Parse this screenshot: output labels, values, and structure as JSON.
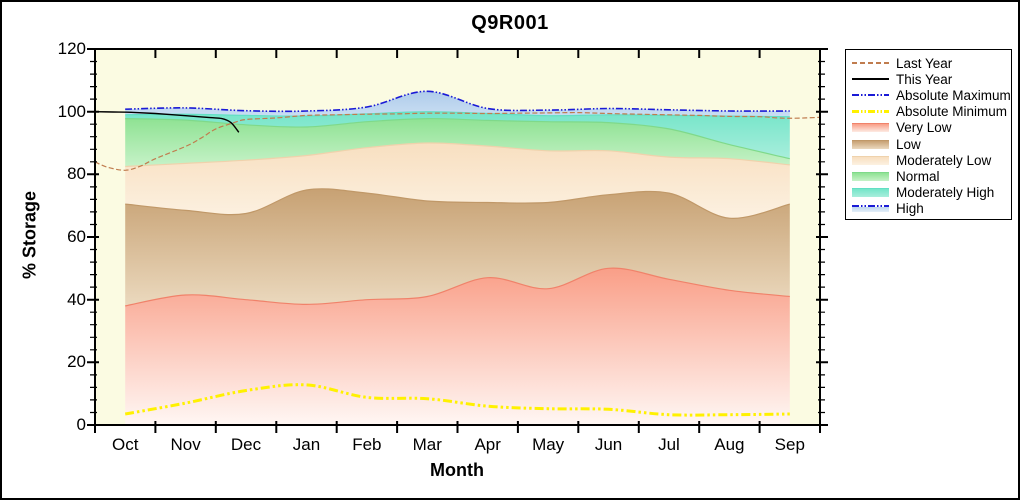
{
  "chart_data": {
    "type": "area",
    "title": "Q9R001",
    "xlabel": "Month",
    "ylabel": "% Storage",
    "ylim": [
      0,
      120
    ],
    "ytick_step": 20,
    "yminor_step": 4,
    "grid": false,
    "legend_position": "top-right-outside",
    "plot_bg": "#FBFBE2",
    "x_categories": [
      "Oct",
      "Nov",
      "Dec",
      "Jan",
      "Feb",
      "Mar",
      "Apr",
      "May",
      "Jun",
      "Jul",
      "Aug",
      "Sep"
    ],
    "bands": [
      {
        "name": "Very Low",
        "top": [
          38,
          41.5,
          40,
          38.5,
          40,
          41,
          47,
          43.5,
          50,
          46.5,
          43,
          41
        ],
        "fill_top": "#F99E87",
        "fill_bottom": "#FFF7F4",
        "border": "#F0826A"
      },
      {
        "name": "Low",
        "top": [
          70.5,
          68.5,
          67.5,
          75,
          74,
          71.5,
          71,
          71,
          73.5,
          74,
          66,
          70.5
        ],
        "fill_top": "#C7A173",
        "fill_bottom": "#EBD9BE",
        "border": "#C09868"
      },
      {
        "name": "Moderately Low",
        "top": [
          82.5,
          83.5,
          84.5,
          86,
          88.5,
          90,
          89,
          87.5,
          87.5,
          85.5,
          85,
          83
        ],
        "fill_top": "#F8DFC0",
        "fill_bottom": "#FCF1E1",
        "border": "#EFD2AC"
      },
      {
        "name": "Normal",
        "top": [
          97.8,
          97.3,
          95.8,
          95.1,
          96.8,
          97.8,
          97.2,
          96.8,
          96.5,
          94.5,
          89.5,
          85
        ],
        "fill_top": "#8FE293",
        "fill_bottom": "#C6F2C8",
        "border": "#7FD98A"
      },
      {
        "name": "Moderately High",
        "top": [
          99,
          99.2,
          98.8,
          98.6,
          99.3,
          100,
          99.4,
          98.7,
          99,
          98.8,
          98.6,
          98.4
        ],
        "fill_top": "#75E5C9",
        "fill_bottom": "#A8EEDC",
        "border": "#62DFC4"
      },
      {
        "name": "High",
        "top": [
          100.8,
          101.2,
          100.3,
          100.2,
          101.5,
          106.5,
          101,
          100.5,
          101,
          100.6,
          100.2,
          100.2
        ],
        "fill_top": "#AFCCEA",
        "fill_bottom": "#C9DEF3",
        "border": null
      }
    ],
    "lines": [
      {
        "name": "Absolute Minimum",
        "color": "#FFF100",
        "style": "dashdotdot",
        "width": 3,
        "values": [
          3.5,
          7,
          11,
          12.8,
          8.8,
          8.4,
          6,
          5.2,
          5,
          3.3,
          3.3,
          3.5
        ]
      },
      {
        "name": "Last Year",
        "color": "#C07C4E",
        "style": "dash",
        "width": 1.2,
        "points": [
          [
            0,
            84
          ],
          [
            0.2,
            82.3
          ],
          [
            0.5,
            81.3
          ],
          [
            0.75,
            82.6
          ],
          [
            1,
            85
          ],
          [
            1.5,
            88.9
          ],
          [
            1.75,
            91.5
          ],
          [
            2,
            94.5
          ],
          [
            2.3,
            96.5
          ],
          [
            2.5,
            97.5
          ],
          [
            3,
            98
          ],
          [
            3.5,
            98.8
          ],
          [
            4,
            99
          ],
          [
            4.5,
            99.2
          ],
          [
            5,
            99.3
          ],
          [
            5.5,
            99.5
          ],
          [
            6,
            99.5
          ],
          [
            6.5,
            99.4
          ],
          [
            7,
            99.5
          ],
          [
            7.5,
            99.6
          ],
          [
            8,
            99.7
          ],
          [
            8.5,
            99.4
          ],
          [
            9,
            99.2
          ],
          [
            9.5,
            99
          ],
          [
            10,
            98.8
          ],
          [
            10.5,
            98.5
          ],
          [
            11,
            98.4
          ],
          [
            11.3,
            98
          ],
          [
            11.6,
            97.9
          ],
          [
            12,
            98.2
          ]
        ]
      },
      {
        "name": "Absolute Maximum",
        "color": "#1A1AD6",
        "style": "dashdotdot",
        "width": 1.6,
        "values": [
          100.8,
          101.2,
          100.3,
          100.2,
          101.5,
          106.5,
          101,
          100.5,
          101,
          100.6,
          100.2,
          100.2
        ]
      },
      {
        "name": "This Year",
        "color": "#000000",
        "style": "solid",
        "width": 1.4,
        "points": [
          [
            0,
            100
          ],
          [
            0.3,
            99.9
          ],
          [
            0.6,
            99.8
          ],
          [
            1,
            99.4
          ],
          [
            1.5,
            98.7
          ],
          [
            1.9,
            98.1
          ],
          [
            2.1,
            97.8
          ],
          [
            2.25,
            96.5
          ],
          [
            2.38,
            93.4
          ]
        ]
      }
    ]
  },
  "legend": {
    "items": [
      {
        "label": "Last Year",
        "swatch": "line-dash",
        "color": "#C07C4E"
      },
      {
        "label": "This Year",
        "swatch": "line-solid",
        "color": "#000000"
      },
      {
        "label": "Absolute Maximum",
        "swatch": "line-dashdotdot",
        "color": "#1A1AD6"
      },
      {
        "label": "Absolute Minimum",
        "swatch": "line-dashdotdot-thick",
        "color": "#FFF100"
      },
      {
        "label": "Very Low",
        "swatch": "band",
        "color": "#F99E87",
        "color2": "#FDEBE4",
        "border": "#F0826A"
      },
      {
        "label": "Low",
        "swatch": "band",
        "color": "#C7A173",
        "color2": "#EBD9BE",
        "border": "#C09868"
      },
      {
        "label": "Moderately Low",
        "swatch": "band",
        "color": "#F8DFC0",
        "color2": "#FCF1E1",
        "border": "#EFD2AC"
      },
      {
        "label": "Normal",
        "swatch": "band",
        "color": "#8FE293",
        "color2": "#C6F2C8",
        "border": "#7FD98A"
      },
      {
        "label": "Moderately High",
        "swatch": "band",
        "color": "#75E5C9",
        "color2": "#A8EEDC",
        "border": "#62DFC4"
      },
      {
        "label": "High",
        "swatch": "band-line",
        "color": "#1A1AD6",
        "color2": "#BDD6EE"
      }
    ]
  }
}
